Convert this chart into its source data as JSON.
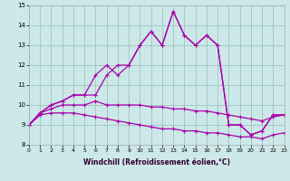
{
  "xlabel": "Windchill (Refroidissement éolien,°C)",
  "bg_color": "#cce8e8",
  "line_color": "#aa00aa",
  "grid_color": "#99bbbb",
  "xlim": [
    0,
    23
  ],
  "ylim": [
    8,
    15
  ],
  "xticks": [
    0,
    1,
    2,
    3,
    4,
    5,
    6,
    7,
    8,
    9,
    10,
    11,
    12,
    13,
    14,
    15,
    16,
    17,
    18,
    19,
    20,
    21,
    22,
    23
  ],
  "yticks": [
    8,
    9,
    10,
    11,
    12,
    13,
    14,
    15
  ],
  "series": [
    [
      9.0,
      9.6,
      10.0,
      10.2,
      10.5,
      10.5,
      11.5,
      12.0,
      11.5,
      12.0,
      13.0,
      13.7,
      13.0,
      14.7,
      13.5,
      13.0,
      13.5,
      13.0,
      9.0,
      9.0,
      8.5,
      8.7,
      9.5,
      9.5
    ],
    [
      9.0,
      9.6,
      10.0,
      10.2,
      10.5,
      10.5,
      10.5,
      11.5,
      12.0,
      12.0,
      13.0,
      13.7,
      13.0,
      14.7,
      13.5,
      13.0,
      13.5,
      13.0,
      9.0,
      9.0,
      8.5,
      8.7,
      9.5,
      9.5
    ],
    [
      9.0,
      9.6,
      9.8,
      10.0,
      10.0,
      10.0,
      10.2,
      10.0,
      10.0,
      10.0,
      10.0,
      9.9,
      9.9,
      9.8,
      9.8,
      9.7,
      9.7,
      9.6,
      9.5,
      9.4,
      9.3,
      9.2,
      9.4,
      9.5
    ],
    [
      9.0,
      9.5,
      9.6,
      9.6,
      9.6,
      9.5,
      9.4,
      9.3,
      9.2,
      9.1,
      9.0,
      8.9,
      8.8,
      8.8,
      8.7,
      8.7,
      8.6,
      8.6,
      8.5,
      8.4,
      8.4,
      8.3,
      8.5,
      8.6
    ]
  ]
}
